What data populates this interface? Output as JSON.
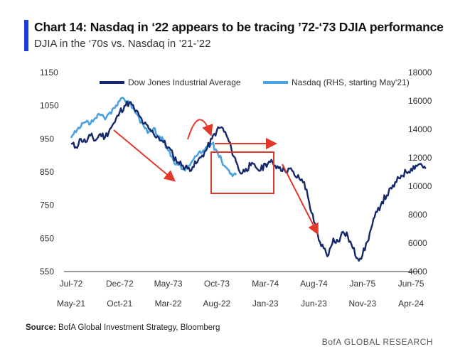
{
  "header": {
    "title": "Chart 14: Nasdaq in ‘22 appears to be tracing ’72-‘73 DJIA performance",
    "subtitle": "DJIA in the ‘70s vs. Nasdaq in ’21-’22"
  },
  "footer": {
    "source_label": "Source:",
    "source_text": "BofA Global Investment Strategy, Bloomberg",
    "brand": "BofA GLOBAL RESEARCH"
  },
  "chart_data": {
    "type": "line",
    "y_left": {
      "min": 550,
      "max": 1150,
      "ticks": [
        "1150",
        "1050",
        "950",
        "850",
        "750",
        "650",
        "550"
      ]
    },
    "y_right": {
      "min": 4000,
      "max": 18000,
      "ticks": [
        "18000",
        "16000",
        "14000",
        "12000",
        "10000",
        "8000",
        "6000",
        "4000"
      ]
    },
    "x_axis_top_labels": [
      "Jul-72",
      "Dec-72",
      "May-73",
      "Oct-73",
      "Mar-74",
      "Aug-74",
      "Jan-75",
      "Jun-75"
    ],
    "x_axis_bottom_labels": [
      "May-21",
      "Oct-21",
      "Mar-22",
      "Aug-22",
      "Jan-23",
      "Jun-23",
      "Nov-23",
      "Apr-24"
    ],
    "legend": {
      "position": "top",
      "entries": [
        "Dow Jones Industrial Average",
        "Nasdaq (RHS, starting May'21)"
      ]
    },
    "colors": {
      "djia": "#14286b",
      "nasdaq": "#4aa3e0",
      "annotation": "#e0382a"
    },
    "series": [
      {
        "name": "Dow Jones Industrial Average",
        "axis": "left",
        "x": [
          0,
          0.1,
          0.2,
          0.3,
          0.4,
          0.5,
          0.6,
          0.7,
          0.8,
          0.9,
          1,
          1.1,
          1.2,
          1.3,
          1.4,
          1.5,
          1.6,
          1.7,
          1.8,
          1.9,
          2,
          2.1,
          2.2,
          2.3,
          2.4,
          2.5,
          2.6,
          2.7,
          2.8,
          2.9,
          3,
          3.1,
          3.2,
          3.3,
          3.4,
          3.5,
          3.6,
          3.7,
          3.8,
          3.9,
          4,
          4.1,
          4.2,
          4.3,
          4.4,
          4.5,
          4.6,
          4.7,
          4.8,
          4.9,
          5,
          5.1,
          5.2,
          5.3,
          5.4,
          5.5,
          5.6,
          5.7,
          5.8,
          5.9,
          6,
          6.1,
          6.2,
          6.3,
          6.4,
          6.5,
          6.6,
          6.7,
          6.8,
          6.9,
          7,
          7.1,
          7.2,
          7.3
        ],
        "values": [
          935,
          925,
          950,
          940,
          960,
          945,
          965,
          955,
          980,
          1000,
          1030,
          1050,
          1060,
          1040,
          1020,
          995,
          980,
          965,
          955,
          940,
          925,
          900,
          880,
          870,
          860,
          865,
          880,
          900,
          920,
          950,
          975,
          985,
          960,
          920,
          880,
          845,
          860,
          870,
          865,
          855,
          875,
          880,
          870,
          865,
          855,
          860,
          840,
          830,
          820,
          760,
          700,
          645,
          620,
          600,
          650,
          640,
          670,
          655,
          620,
          590,
          600,
          640,
          690,
          730,
          760,
          780,
          800,
          820,
          840,
          850,
          860,
          870,
          875,
          860
        ],
        "smoothing": 5
      },
      {
        "name": "Nasdaq (RHS, starting May'21)",
        "axis": "right",
        "x": [
          0,
          0.1,
          0.2,
          0.3,
          0.4,
          0.5,
          0.6,
          0.7,
          0.8,
          0.9,
          1,
          1.1,
          1.2,
          1.3,
          1.4,
          1.5,
          1.6,
          1.7,
          1.8,
          1.9,
          2,
          2.1,
          2.2,
          2.3,
          2.4,
          2.5,
          2.6,
          2.7,
          2.8,
          2.9,
          3,
          3.1,
          3.2,
          3.3,
          3.4
        ],
        "values": [
          13400,
          13800,
          14200,
          14500,
          14400,
          14800,
          15000,
          14700,
          15200,
          15500,
          16000,
          16100,
          15900,
          15400,
          14800,
          14200,
          13800,
          14100,
          13500,
          13200,
          12500,
          11900,
          11500,
          11200,
          11300,
          11800,
          12200,
          12400,
          12800,
          13000,
          12500,
          11800,
          11300,
          10900,
          10800
        ],
        "smoothing": 4
      }
    ]
  }
}
